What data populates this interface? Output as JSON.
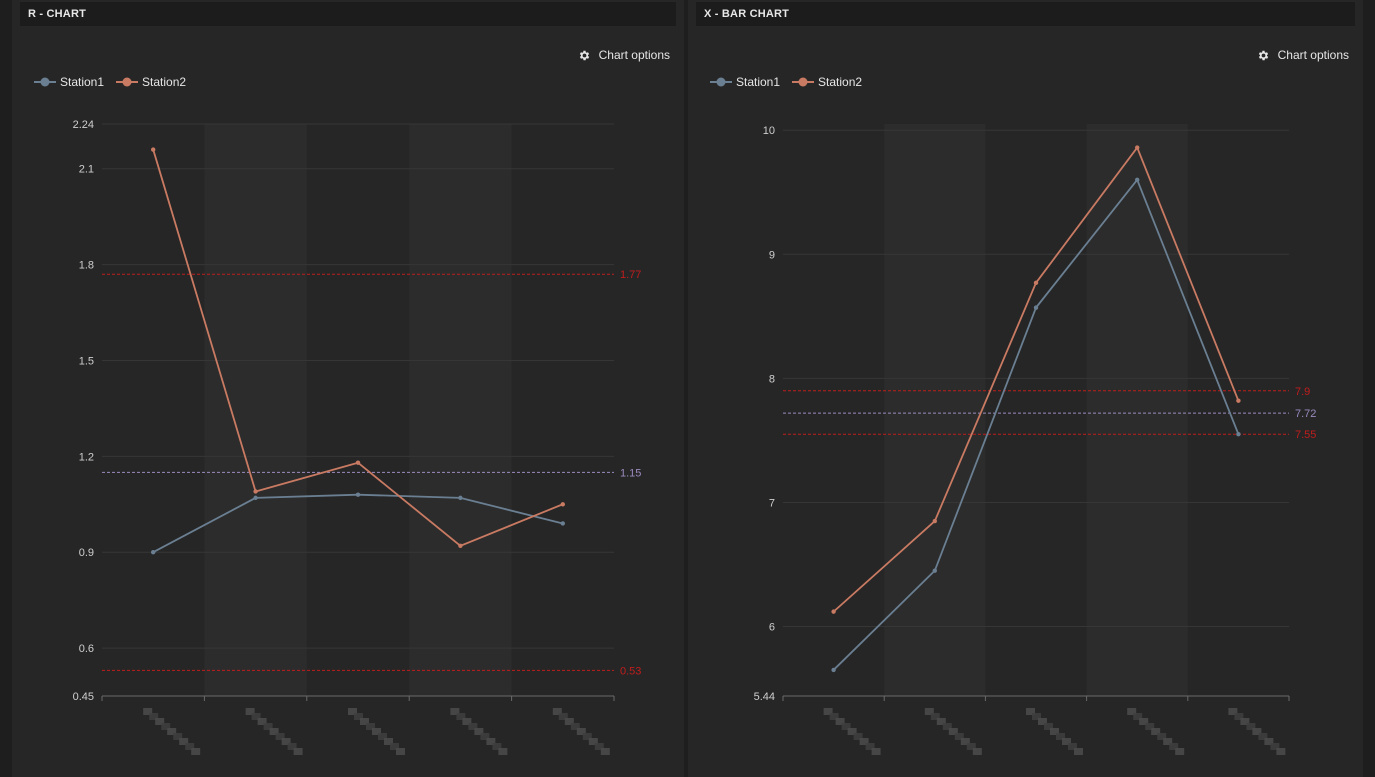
{
  "colors": {
    "station1": "#6a7f92",
    "station2": "#c97a62",
    "control_limit": "#c01d1d",
    "center_line": "#9c8bbf",
    "band": "#2c2c2c"
  },
  "panels": [
    {
      "id": "r",
      "header": "R - CHART",
      "chart_options_label": "Chart options",
      "legend": [
        "Station1",
        "Station2"
      ]
    },
    {
      "id": "x",
      "header": "X - BAR CHART",
      "chart_options_label": "Chart options",
      "legend": [
        "Station1",
        "Station2"
      ]
    }
  ],
  "chart_data": [
    {
      "type": "line",
      "title": "R - CHART",
      "categories": [
        "",
        "",
        "",
        "",
        ""
      ],
      "series": [
        {
          "name": "Station1",
          "values": [
            0.9,
            1.07,
            1.08,
            1.07,
            0.99
          ]
        },
        {
          "name": "Station2",
          "values": [
            2.16,
            1.09,
            1.18,
            0.92,
            1.05
          ]
        }
      ],
      "ylim": [
        0.45,
        2.24
      ],
      "yticks": [
        0.45,
        0.6,
        0.9,
        1.2,
        1.5,
        1.8,
        2.1,
        2.24
      ],
      "reference_lines": [
        {
          "value": 1.77,
          "label": "1.77",
          "kind": "limit"
        },
        {
          "value": 1.15,
          "label": "1.15",
          "kind": "center"
        },
        {
          "value": 0.53,
          "label": "0.53",
          "kind": "limit"
        }
      ],
      "grid": true,
      "legend_position": "top-left"
    },
    {
      "type": "line",
      "title": "X - BAR CHART",
      "categories": [
        "",
        "",
        "",
        "",
        ""
      ],
      "series": [
        {
          "name": "Station1",
          "values": [
            5.65,
            6.45,
            8.57,
            9.6,
            7.55
          ]
        },
        {
          "name": "Station2",
          "values": [
            6.12,
            6.85,
            8.77,
            9.86,
            7.82
          ]
        }
      ],
      "ylim": [
        5.44,
        10.05
      ],
      "yticks": [
        5.44,
        6,
        7,
        8,
        9,
        10
      ],
      "reference_lines": [
        {
          "value": 7.9,
          "label": "7.9",
          "kind": "limit"
        },
        {
          "value": 7.72,
          "label": "7.72",
          "kind": "center"
        },
        {
          "value": 7.55,
          "label": "7.55",
          "kind": "limit"
        }
      ],
      "grid": true,
      "legend_position": "top-left"
    }
  ]
}
